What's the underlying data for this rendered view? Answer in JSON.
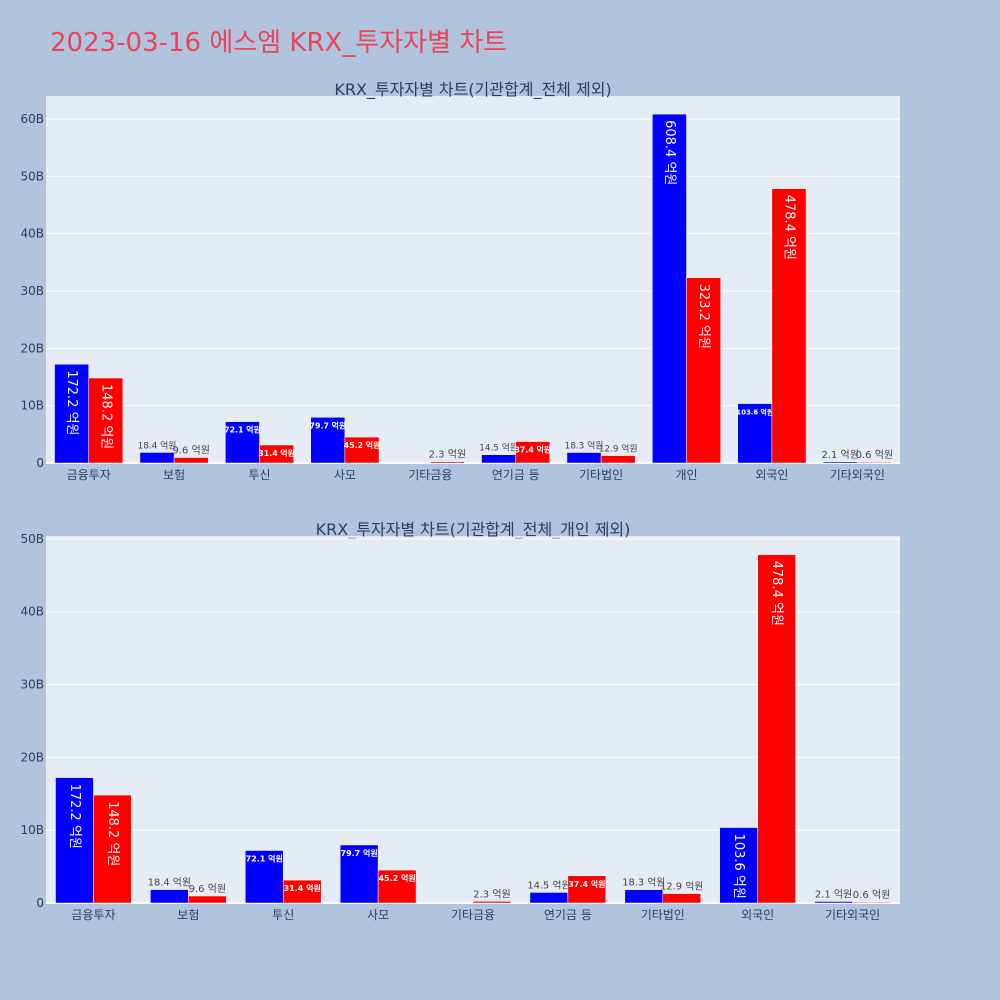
{
  "page": {
    "title": "2023-03-16 에스엠 KRX_투자자별 차트"
  },
  "colors": {
    "buy": "#0000ff",
    "sell": "#ff0000",
    "plot_bg": "#e5ecf6",
    "page_bg": "#b0c4de"
  },
  "chart_data": [
    {
      "type": "bar",
      "title": "KRX_투자자별 차트(기관합계_전체 제외)",
      "categories": [
        "금융투자",
        "보험",
        "투신",
        "사모",
        "기타금융",
        "연기금 등",
        "기타법인",
        "개인",
        "외국인",
        "기타외국인"
      ],
      "series": [
        {
          "color": "#0000ff",
          "values": [
            17220000000,
            1840000000,
            7210000000,
            7970000000,
            0,
            1450000000,
            1830000000,
            60840000000,
            10360000000,
            210000000
          ],
          "labels": [
            "172.2 억원",
            "18.4 억원",
            "72.1 억원",
            "79.7 억원",
            "",
            "14.5 억원",
            "18.3 억원",
            "608.4 억원",
            "103.6 억원",
            "2.1 억원"
          ]
        },
        {
          "color": "#ff0000",
          "values": [
            14820000000,
            960000000,
            3140000000,
            4520000000,
            230000000,
            3740000000,
            1290000000,
            32320000000,
            47840000000,
            60000000
          ],
          "labels": [
            "148.2 억원",
            "9.6 억원",
            "31.4 억원",
            "45.2 억원",
            "2.3 억원",
            "37.4 억원",
            "12.9 억원",
            "323.2 억원",
            "478.4 억원",
            "0.6 억원"
          ]
        }
      ],
      "ylim": [
        0,
        64000000000
      ],
      "yticks": [
        0,
        10000000000,
        20000000000,
        30000000000,
        40000000000,
        50000000000,
        60000000000
      ],
      "ytick_labels": [
        "0",
        "10B",
        "20B",
        "30B",
        "40B",
        "50B",
        "60B"
      ],
      "grid": true
    },
    {
      "type": "bar",
      "title": "KRX_투자자별 차트(기관합계_전체_개인 제외)",
      "categories": [
        "금융투자",
        "보험",
        "투신",
        "사모",
        "기타금융",
        "연기금 등",
        "기타법인",
        "외국인",
        "기타외국인"
      ],
      "series": [
        {
          "color": "#0000ff",
          "values": [
            17220000000,
            1840000000,
            7210000000,
            7970000000,
            0,
            1450000000,
            1830000000,
            10360000000,
            210000000
          ],
          "labels": [
            "172.2 억원",
            "18.4 억원",
            "72.1 억원",
            "79.7 억원",
            "",
            "14.5 억원",
            "18.3 억원",
            "103.6 억원",
            "2.1 억원"
          ]
        },
        {
          "color": "#ff0000",
          "values": [
            14820000000,
            960000000,
            3140000000,
            4520000000,
            230000000,
            3740000000,
            1290000000,
            47840000000,
            60000000
          ],
          "labels": [
            "148.2 억원",
            "9.6 억원",
            "31.4 억원",
            "45.2 억원",
            "2.3 억원",
            "37.4 억원",
            "12.9 억원",
            "478.4 억원",
            "0.6 억원"
          ]
        }
      ],
      "ylim": [
        0,
        50400000000
      ],
      "yticks": [
        0,
        10000000000,
        20000000000,
        30000000000,
        40000000000,
        50000000000
      ],
      "ytick_labels": [
        "0",
        "10B",
        "20B",
        "30B",
        "40B",
        "50B"
      ],
      "grid": true
    }
  ]
}
